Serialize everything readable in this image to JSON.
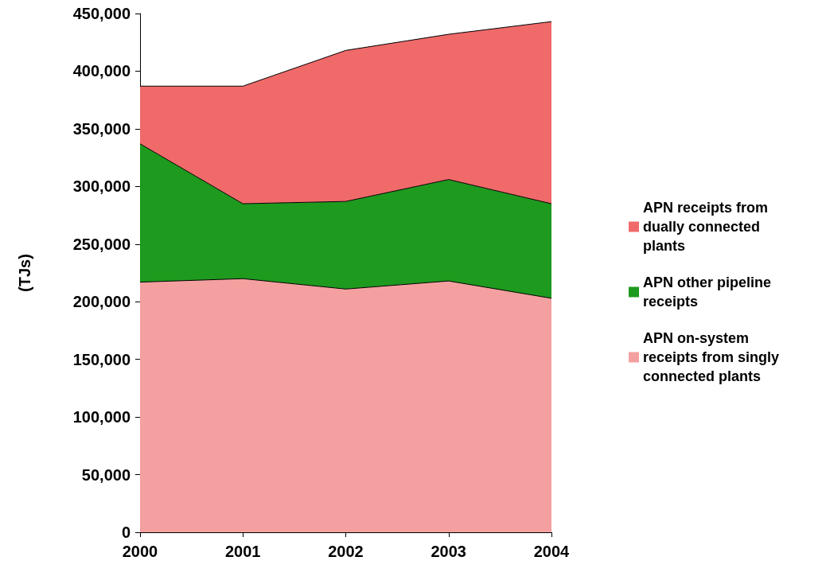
{
  "chart_data": {
    "type": "area",
    "stacked": true,
    "ylabel": "(TJs)",
    "categories": [
      "2000",
      "2001",
      "2002",
      "2003",
      "2004"
    ],
    "series": [
      {
        "name": "APN on-system receipts from singly connected plants",
        "color": "#f4a0a0",
        "values": [
          217000,
          220000,
          211000,
          218000,
          203000
        ]
      },
      {
        "name": "APN other pipeline receipts",
        "color": "#1e9a1e",
        "values": [
          120000,
          65000,
          76000,
          88000,
          82000
        ]
      },
      {
        "name": "APN receipts from dually connected plants",
        "color": "#f06a6a",
        "values": [
          50000,
          102000,
          131000,
          126000,
          158000
        ]
      }
    ],
    "ylim": [
      0,
      450000
    ],
    "yticks": [
      0,
      {
        "value": 50000,
        "label": "50,000"
      },
      {
        "value": 100000,
        "label": "100,000"
      },
      {
        "value": 150000,
        "label": "150,000"
      },
      {
        "value": 200000,
        "label": "200,000"
      },
      {
        "value": 250000,
        "label": "250,000"
      },
      {
        "value": 300000,
        "label": "300,000"
      },
      {
        "value": 350000,
        "label": "350,000"
      },
      {
        "value": 400000,
        "label": "400,000"
      },
      {
        "value": 450000,
        "label": "450,000"
      }
    ],
    "grid": false,
    "legend": "right",
    "marker": "none",
    "line_style": "solid"
  }
}
